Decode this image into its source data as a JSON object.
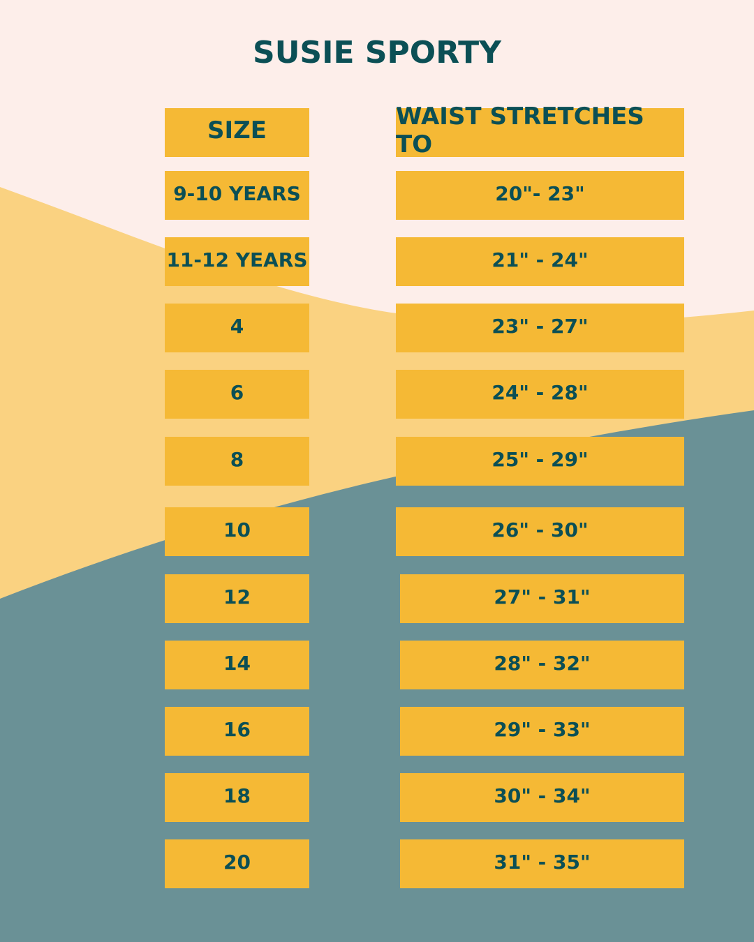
{
  "title": "SUSIE SPORTY",
  "colors": {
    "background": "#fdeeea",
    "wave_yellow": "#fad281",
    "wave_teal": "#6a9196",
    "box": "#f5b935",
    "text": "#0b4f55"
  },
  "headers": {
    "size": "SIZE",
    "waist": "WAIST STRETCHES TO"
  },
  "rows": [
    {
      "size": "9-10 YEARS",
      "waist": "20\"- 23\""
    },
    {
      "size": "11-12 YEARS",
      "waist": "21\" - 24\""
    },
    {
      "size": "4",
      "waist": "23\" - 27\""
    },
    {
      "size": "6",
      "waist": "24\" - 28\""
    },
    {
      "size": "8",
      "waist": "25\" - 29\""
    },
    {
      "size": "10",
      "waist": "26\" - 30\""
    },
    {
      "size": "12",
      "waist": "27\" - 31\""
    },
    {
      "size": "14",
      "waist": "28\" - 32\""
    },
    {
      "size": "16",
      "waist": "29\" - 33\""
    },
    {
      "size": "18",
      "waist": "30\" - 34\""
    },
    {
      "size": "20",
      "waist": "31\" - 35\""
    }
  ]
}
